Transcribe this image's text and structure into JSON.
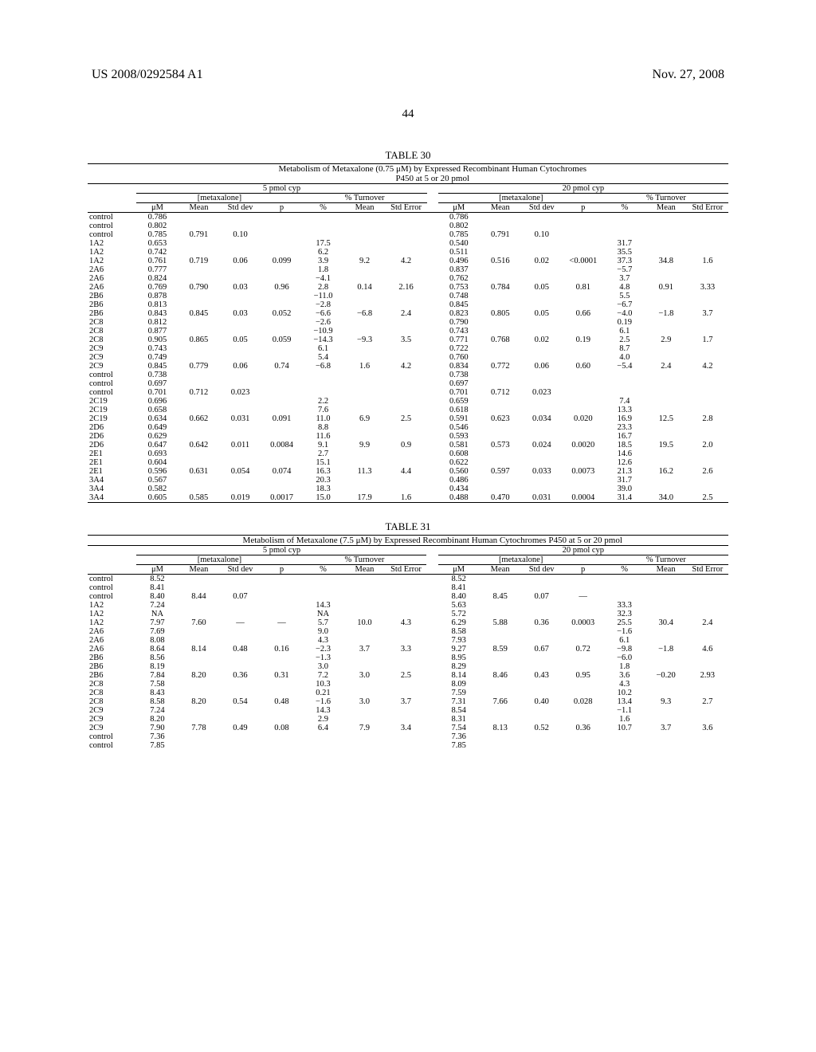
{
  "header": {
    "left": "US 2008/0292584 A1",
    "right": "Nov. 27, 2008",
    "page_number": "44"
  },
  "table30": {
    "title": "TABLE 30",
    "caption_line1": "Metabolism of Metaxalone (0.75 μM) by Expressed Recombinant Human Cytochromes",
    "caption_line2": "P450 at 5 or 20 pmol",
    "grp_5": "5 pmol cyp",
    "grp_20": "20 pmol cyp",
    "sub_metax": "[metaxalone]",
    "sub_turn": "% Turnover",
    "cols": [
      "μM",
      "Mean",
      "Std dev",
      "p",
      "%",
      "Mean",
      "Std Error",
      "μM",
      "Mean",
      "Std dev",
      "p",
      "%",
      "Mean",
      "Std Error"
    ],
    "rows": [
      {
        "label": "control",
        "c": [
          "0.786",
          "",
          "",
          "",
          "",
          "",
          "",
          "0.786",
          "",
          "",
          "",
          "",
          "",
          ""
        ]
      },
      {
        "label": "control",
        "c": [
          "0.802",
          "",
          "",
          "",
          "",
          "",
          "",
          "0.802",
          "",
          "",
          "",
          "",
          "",
          ""
        ]
      },
      {
        "label": "control",
        "c": [
          "0.785",
          "0.791",
          "0.10",
          "",
          "",
          "",
          "",
          "0.785",
          "0.791",
          "0.10",
          "",
          "",
          "",
          ""
        ]
      },
      {
        "label": "1A2",
        "c": [
          "0.653",
          "",
          "",
          "",
          "17.5",
          "",
          "",
          "0.540",
          "",
          "",
          "",
          "31.7",
          "",
          ""
        ]
      },
      {
        "label": "1A2",
        "c": [
          "0.742",
          "",
          "",
          "",
          "6.2",
          "",
          "",
          "0.511",
          "",
          "",
          "",
          "35.5",
          "",
          ""
        ]
      },
      {
        "label": "1A2",
        "c": [
          "0.761",
          "0.719",
          "0.06",
          "0.099",
          "3.9",
          "9.2",
          "4.2",
          "0.496",
          "0.516",
          "0.02",
          "<0.0001",
          "37.3",
          "34.8",
          "1.6"
        ]
      },
      {
        "label": "2A6",
        "c": [
          "0.777",
          "",
          "",
          "",
          "1.8",
          "",
          "",
          "0.837",
          "",
          "",
          "",
          "−5.7",
          "",
          ""
        ]
      },
      {
        "label": "2A6",
        "c": [
          "0.824",
          "",
          "",
          "",
          "−4.1",
          "",
          "",
          "0.762",
          "",
          "",
          "",
          "3.7",
          "",
          ""
        ]
      },
      {
        "label": "2A6",
        "c": [
          "0.769",
          "0.790",
          "0.03",
          "0.96",
          "2.8",
          "0.14",
          "2.16",
          "0.753",
          "0.784",
          "0.05",
          "0.81",
          "4.8",
          "0.91",
          "3.33"
        ]
      },
      {
        "label": "2B6",
        "c": [
          "0.878",
          "",
          "",
          "",
          "−11.0",
          "",
          "",
          "0.748",
          "",
          "",
          "",
          "5.5",
          "",
          ""
        ]
      },
      {
        "label": "2B6",
        "c": [
          "0.813",
          "",
          "",
          "",
          "−2.8",
          "",
          "",
          "0.845",
          "",
          "",
          "",
          "−6.7",
          "",
          ""
        ]
      },
      {
        "label": "2B6",
        "c": [
          "0.843",
          "0.845",
          "0.03",
          "0.052",
          "−6.6",
          "−6.8",
          "2.4",
          "0.823",
          "0.805",
          "0.05",
          "0.66",
          "−4.0",
          "−1.8",
          "3.7"
        ]
      },
      {
        "label": "2C8",
        "c": [
          "0.812",
          "",
          "",
          "",
          "−2.6",
          "",
          "",
          "0.790",
          "",
          "",
          "",
          "0.19",
          "",
          ""
        ]
      },
      {
        "label": "2C8",
        "c": [
          "0.877",
          "",
          "",
          "",
          "−10.9",
          "",
          "",
          "0.743",
          "",
          "",
          "",
          "6.1",
          "",
          ""
        ]
      },
      {
        "label": "2C8",
        "c": [
          "0.905",
          "0.865",
          "0.05",
          "0.059",
          "−14.3",
          "−9.3",
          "3.5",
          "0.771",
          "0.768",
          "0.02",
          "0.19",
          "2.5",
          "2.9",
          "1.7"
        ]
      },
      {
        "label": "2C9",
        "c": [
          "0.743",
          "",
          "",
          "",
          "6.1",
          "",
          "",
          "0.722",
          "",
          "",
          "",
          "8.7",
          "",
          ""
        ]
      },
      {
        "label": "2C9",
        "c": [
          "0.749",
          "",
          "",
          "",
          "5.4",
          "",
          "",
          "0.760",
          "",
          "",
          "",
          "4.0",
          "",
          ""
        ]
      },
      {
        "label": "2C9",
        "c": [
          "0.845",
          "0.779",
          "0.06",
          "0.74",
          "−6.8",
          "1.6",
          "4.2",
          "0.834",
          "0.772",
          "0.06",
          "0.60",
          "−5.4",
          "2.4",
          "4.2"
        ]
      },
      {
        "label": "control",
        "c": [
          "0.738",
          "",
          "",
          "",
          "",
          "",
          "",
          "0.738",
          "",
          "",
          "",
          "",
          "",
          ""
        ]
      },
      {
        "label": "control",
        "c": [
          "0.697",
          "",
          "",
          "",
          "",
          "",
          "",
          "0.697",
          "",
          "",
          "",
          "",
          "",
          ""
        ]
      },
      {
        "label": "control",
        "c": [
          "0.701",
          "0.712",
          "0.023",
          "",
          "",
          "",
          "",
          "0.701",
          "0.712",
          "0.023",
          "",
          "",
          "",
          ""
        ]
      },
      {
        "label": "2C19",
        "c": [
          "0.696",
          "",
          "",
          "",
          "2.2",
          "",
          "",
          "0.659",
          "",
          "",
          "",
          "7.4",
          "",
          ""
        ]
      },
      {
        "label": "2C19",
        "c": [
          "0.658",
          "",
          "",
          "",
          "7.6",
          "",
          "",
          "0.618",
          "",
          "",
          "",
          "13.3",
          "",
          ""
        ]
      },
      {
        "label": "2C19",
        "c": [
          "0.634",
          "0.662",
          "0.031",
          "0.091",
          "11.0",
          "6.9",
          "2.5",
          "0.591",
          "0.623",
          "0.034",
          "0.020",
          "16.9",
          "12.5",
          "2.8"
        ]
      },
      {
        "label": "2D6",
        "c": [
          "0.649",
          "",
          "",
          "",
          "8.8",
          "",
          "",
          "0.546",
          "",
          "",
          "",
          "23.3",
          "",
          ""
        ]
      },
      {
        "label": "2D6",
        "c": [
          "0.629",
          "",
          "",
          "",
          "11.6",
          "",
          "",
          "0.593",
          "",
          "",
          "",
          "16.7",
          "",
          ""
        ]
      },
      {
        "label": "2D6",
        "c": [
          "0.647",
          "0.642",
          "0.011",
          "0.0084",
          "9.1",
          "9.9",
          "0.9",
          "0.581",
          "0.573",
          "0.024",
          "0.0020",
          "18.5",
          "19.5",
          "2.0"
        ]
      },
      {
        "label": "2E1",
        "c": [
          "0.693",
          "",
          "",
          "",
          "2.7",
          "",
          "",
          "0.608",
          "",
          "",
          "",
          "14.6",
          "",
          ""
        ]
      },
      {
        "label": "2E1",
        "c": [
          "0.604",
          "",
          "",
          "",
          "15.1",
          "",
          "",
          "0.622",
          "",
          "",
          "",
          "12.6",
          "",
          ""
        ]
      },
      {
        "label": "2E1",
        "c": [
          "0.596",
          "0.631",
          "0.054",
          "0.074",
          "16.3",
          "11.3",
          "4.4",
          "0.560",
          "0.597",
          "0.033",
          "0.0073",
          "21.3",
          "16.2",
          "2.6"
        ]
      },
      {
        "label": "3A4",
        "c": [
          "0.567",
          "",
          "",
          "",
          "20.3",
          "",
          "",
          "0.486",
          "",
          "",
          "",
          "31.7",
          "",
          ""
        ]
      },
      {
        "label": "3A4",
        "c": [
          "0.582",
          "",
          "",
          "",
          "18.3",
          "",
          "",
          "0.434",
          "",
          "",
          "",
          "39.0",
          "",
          ""
        ]
      },
      {
        "label": "3A4",
        "c": [
          "0.605",
          "0.585",
          "0.019",
          "0.0017",
          "15.0",
          "17.9",
          "1.6",
          "0.488",
          "0.470",
          "0.031",
          "0.0004",
          "31.4",
          "34.0",
          "2.5"
        ]
      }
    ]
  },
  "table31": {
    "title": "TABLE 31",
    "caption": "Metabolism of Metaxalone (7.5 μM) by Expressed Recombinant Human Cytochromes P450 at 5 or 20 pmol",
    "grp_5": "5 pmol cyp",
    "grp_20": "20 pmol cyp",
    "sub_metax": "[metaxalone]",
    "sub_turn": "% Turnover",
    "cols": [
      "μM",
      "Mean",
      "Std dev",
      "p",
      "%",
      "Mean",
      "Std Error",
      "μM",
      "Mean",
      "Std dev",
      "p",
      "%",
      "Mean",
      "Std Error"
    ],
    "rows": [
      {
        "label": "control",
        "c": [
          "8.52",
          "",
          "",
          "",
          "",
          "",
          "",
          "8.52",
          "",
          "",
          "",
          "",
          "",
          ""
        ]
      },
      {
        "label": "control",
        "c": [
          "8.41",
          "",
          "",
          "",
          "",
          "",
          "",
          "8.41",
          "",
          "",
          "",
          "",
          "",
          ""
        ]
      },
      {
        "label": "control",
        "c": [
          "8.40",
          "8.44",
          "0.07",
          "",
          "",
          "",
          "",
          "8.40",
          "8.45",
          "0.07",
          "—",
          "",
          "",
          ""
        ]
      },
      {
        "label": "1A2",
        "c": [
          "7.24",
          "",
          "",
          "",
          "14.3",
          "",
          "",
          "5.63",
          "",
          "",
          "",
          "33.3",
          "",
          ""
        ]
      },
      {
        "label": "1A2",
        "c": [
          "NA",
          "",
          "",
          "",
          "NA",
          "",
          "",
          "5.72",
          "",
          "",
          "",
          "32.3",
          "",
          ""
        ]
      },
      {
        "label": "1A2",
        "c": [
          "7.97",
          "7.60",
          "—",
          "—",
          "5.7",
          "10.0",
          "4.3",
          "6.29",
          "5.88",
          "0.36",
          "0.0003",
          "25.5",
          "30.4",
          "2.4"
        ]
      },
      {
        "label": "2A6",
        "c": [
          "7.69",
          "",
          "",
          "",
          "9.0",
          "",
          "",
          "8.58",
          "",
          "",
          "",
          "−1.6",
          "",
          ""
        ]
      },
      {
        "label": "2A6",
        "c": [
          "8.08",
          "",
          "",
          "",
          "4.3",
          "",
          "",
          "7.93",
          "",
          "",
          "",
          "6.1",
          "",
          ""
        ]
      },
      {
        "label": "2A6",
        "c": [
          "8.64",
          "8.14",
          "0.48",
          "0.16",
          "−2.3",
          "3.7",
          "3.3",
          "9.27",
          "8.59",
          "0.67",
          "0.72",
          "−9.8",
          "−1.8",
          "4.6"
        ]
      },
      {
        "label": "2B6",
        "c": [
          "8.56",
          "",
          "",
          "",
          "−1.3",
          "",
          "",
          "8.95",
          "",
          "",
          "",
          "−6.0",
          "",
          ""
        ]
      },
      {
        "label": "2B6",
        "c": [
          "8.19",
          "",
          "",
          "",
          "3.0",
          "",
          "",
          "8.29",
          "",
          "",
          "",
          "1.8",
          "",
          ""
        ]
      },
      {
        "label": "2B6",
        "c": [
          "7.84",
          "8.20",
          "0.36",
          "0.31",
          "7.2",
          "3.0",
          "2.5",
          "8.14",
          "8.46",
          "0.43",
          "0.95",
          "3.6",
          "−0.20",
          "2.93"
        ]
      },
      {
        "label": "2C8",
        "c": [
          "7.58",
          "",
          "",
          "",
          "10.3",
          "",
          "",
          "8.09",
          "",
          "",
          "",
          "4.3",
          "",
          ""
        ]
      },
      {
        "label": "2C8",
        "c": [
          "8.43",
          "",
          "",
          "",
          "0.21",
          "",
          "",
          "7.59",
          "",
          "",
          "",
          "10.2",
          "",
          ""
        ]
      },
      {
        "label": "2C8",
        "c": [
          "8.58",
          "8.20",
          "0.54",
          "0.48",
          "−1.6",
          "3.0",
          "3.7",
          "7.31",
          "7.66",
          "0.40",
          "0.028",
          "13.4",
          "9.3",
          "2.7"
        ]
      },
      {
        "label": "2C9",
        "c": [
          "7.24",
          "",
          "",
          "",
          "14.3",
          "",
          "",
          "8.54",
          "",
          "",
          "",
          "−1.1",
          "",
          ""
        ]
      },
      {
        "label": "2C9",
        "c": [
          "8.20",
          "",
          "",
          "",
          "2.9",
          "",
          "",
          "8.31",
          "",
          "",
          "",
          "1.6",
          "",
          ""
        ]
      },
      {
        "label": "2C9",
        "c": [
          "7.90",
          "7.78",
          "0.49",
          "0.08",
          "6.4",
          "7.9",
          "3.4",
          "7.54",
          "8.13",
          "0.52",
          "0.36",
          "10.7",
          "3.7",
          "3.6"
        ]
      },
      {
        "label": "control",
        "c": [
          "7.36",
          "",
          "",
          "",
          "",
          "",
          "",
          "7.36",
          "",
          "",
          "",
          "",
          "",
          ""
        ]
      },
      {
        "label": "control",
        "c": [
          "7.85",
          "",
          "",
          "",
          "",
          "",
          "",
          "7.85",
          "",
          "",
          "",
          "",
          "",
          ""
        ]
      }
    ]
  }
}
